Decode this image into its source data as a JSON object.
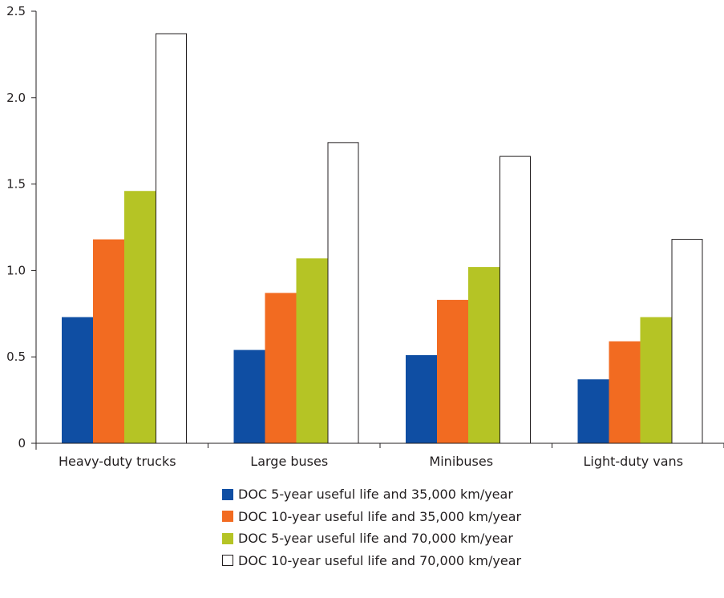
{
  "chart_data": {
    "type": "bar",
    "title": "",
    "xlabel": "",
    "ylabel": "",
    "ylim": [
      0,
      2.5
    ],
    "yticks": [
      "0",
      "0.5",
      "1.0",
      "1.5",
      "2.0",
      "2.5"
    ],
    "categories": [
      "Heavy-duty trucks",
      "Large buses",
      "Minibuses",
      "Light-duty vans"
    ],
    "series": [
      {
        "name": "DOC 5-year useful life and 35,000 km/year",
        "color": "#0f4ea3",
        "values": [
          0.73,
          0.54,
          0.51,
          0.37
        ]
      },
      {
        "name": "DOC 10-year useful life and 35,000 km/year",
        "color": "#f26b21",
        "values": [
          1.18,
          0.87,
          0.83,
          0.59
        ]
      },
      {
        "name": "DOC 5-year useful life and 70,000 km/year",
        "color": "#b5c425",
        "values": [
          1.46,
          1.07,
          1.02,
          0.73
        ]
      },
      {
        "name": "DOC 10-year useful life and 70,000 km/year",
        "color": "#ffffff",
        "values": [
          2.37,
          1.74,
          1.66,
          1.18
        ]
      }
    ],
    "legend_position": "bottom",
    "grid": false
  }
}
